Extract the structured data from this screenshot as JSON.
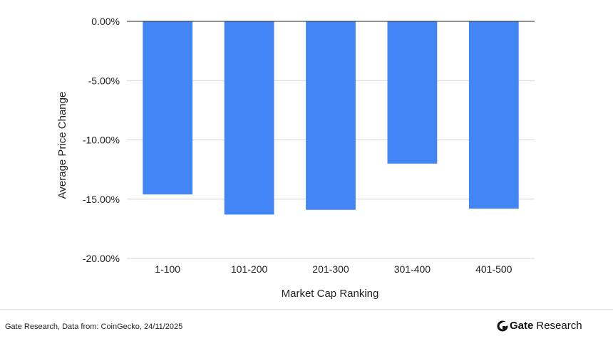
{
  "chart_data": {
    "type": "bar",
    "categories": [
      "1-100",
      "101-200",
      "201-300",
      "301-400",
      "401-500"
    ],
    "values": [
      -14.6,
      -16.3,
      -15.9,
      -12.0,
      -15.8
    ],
    "xlabel": "Market Cap Ranking",
    "ylabel": "Average Price Change",
    "ylim": [
      -20,
      0
    ],
    "yticks": [
      "0.00%",
      "-5.00%",
      "-10.00%",
      "-15.00%",
      "-20.00%"
    ],
    "ytick_values": [
      0,
      -5,
      -10,
      -15,
      -20
    ],
    "grid": true,
    "bar_color": "#4285F4"
  },
  "footer": {
    "source": "Gate Research, Data from: CoinGecko, 24/11/2025",
    "brand_name": "Gate",
    "brand_suffix": "Research"
  },
  "brand_icon": "gate-logo-icon"
}
